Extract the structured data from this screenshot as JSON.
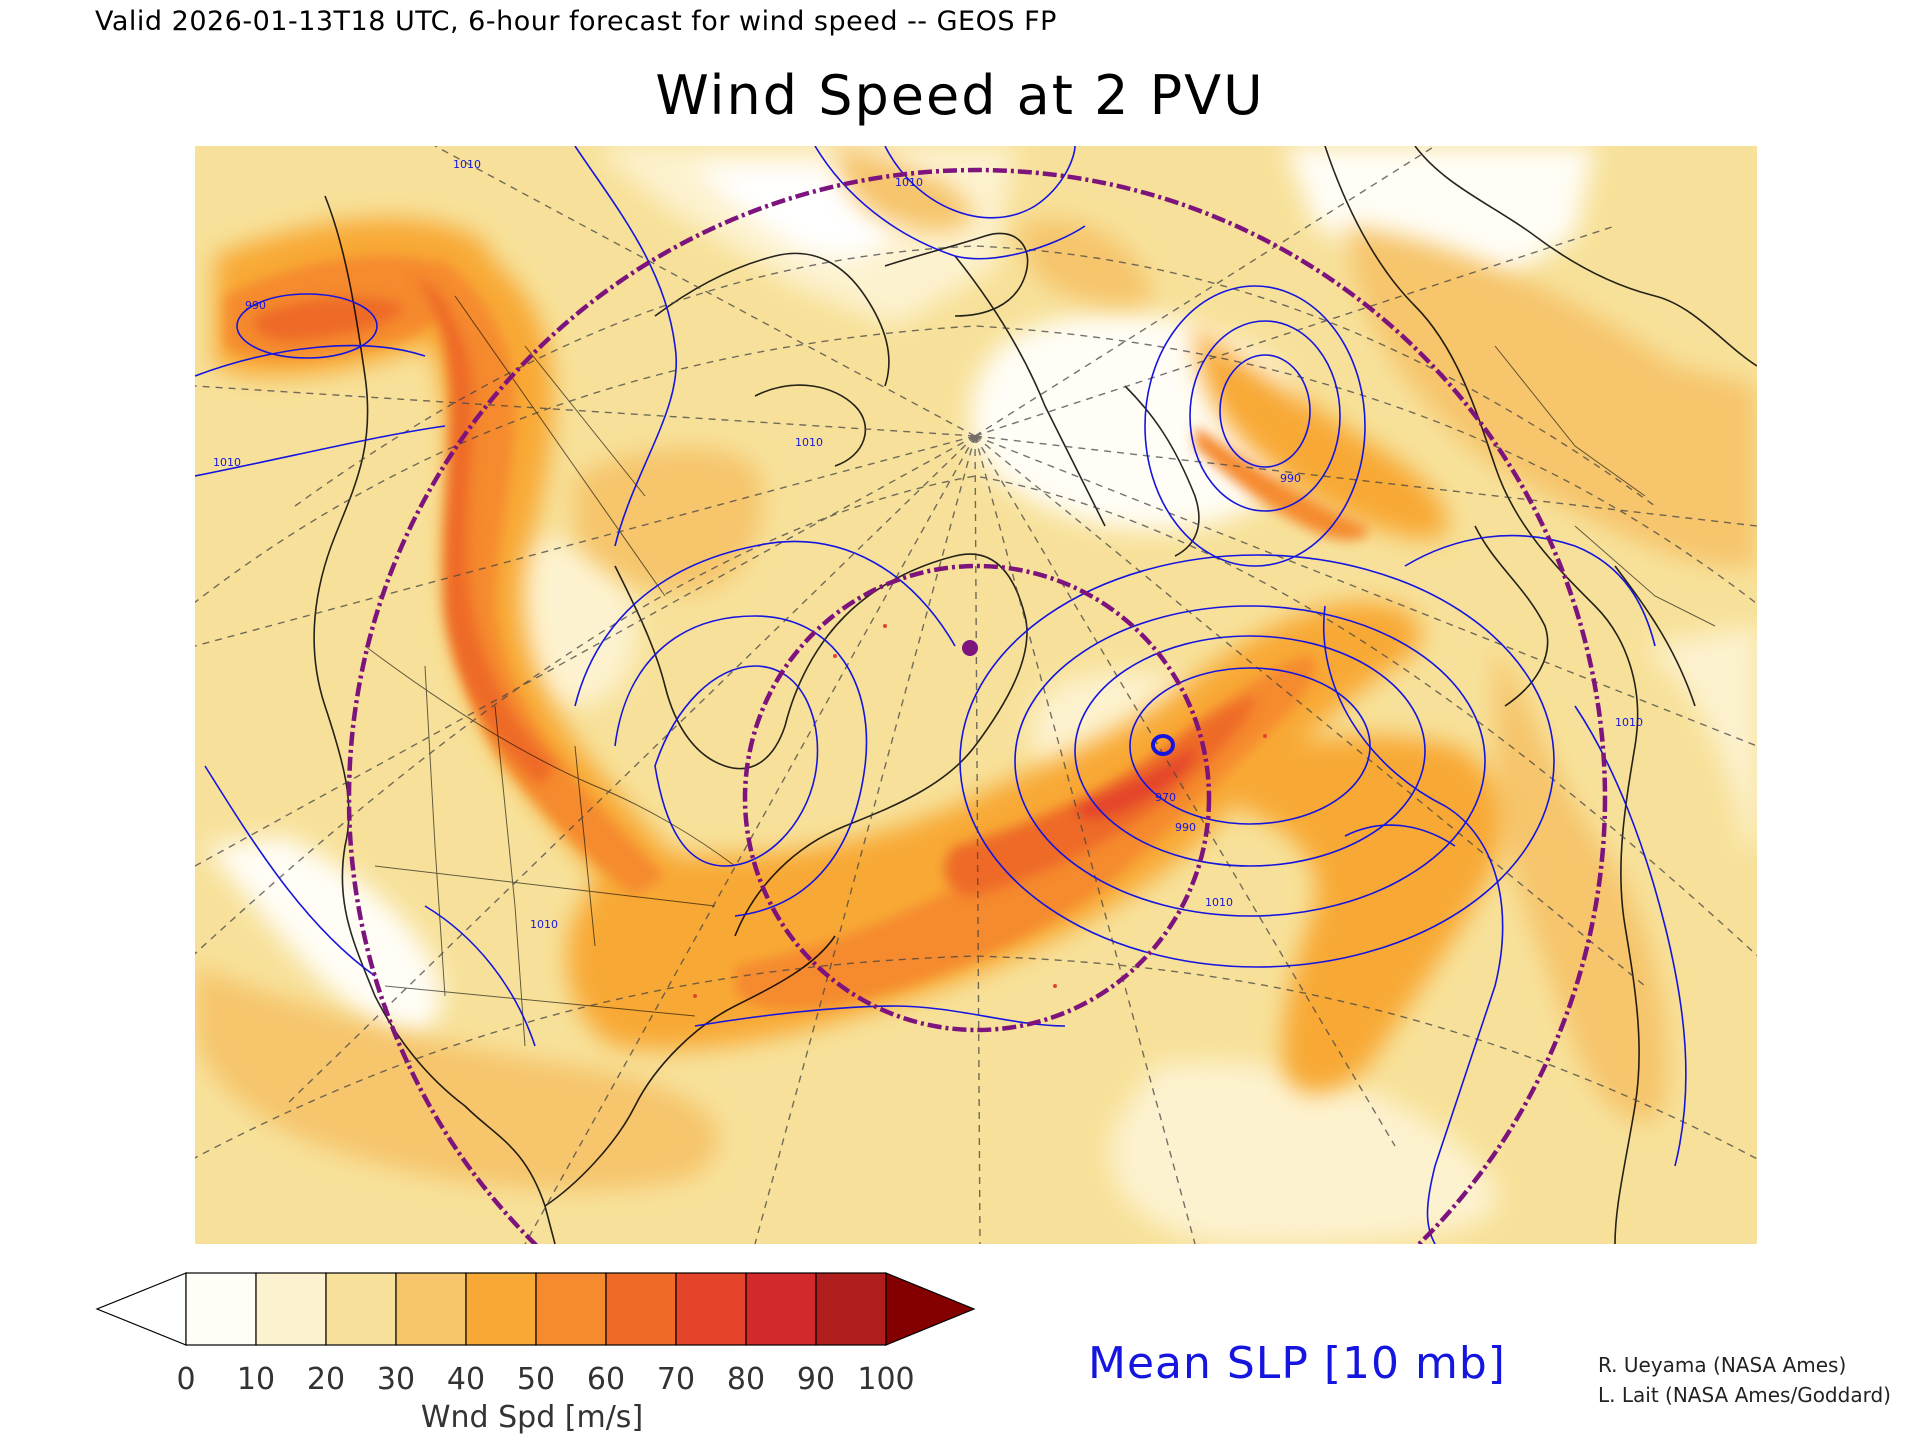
{
  "header": {
    "valid_line": "Valid 2026-01-13T18 UTC, 6-hour forecast for wind speed -- GEOS FP",
    "title": "Wind Speed at 2 PVU"
  },
  "colorbar": {
    "labels": [
      "0",
      "10",
      "20",
      "30",
      "40",
      "50",
      "60",
      "70",
      "80",
      "90",
      "100"
    ],
    "unit": "Wnd Spd [m/s]",
    "colors": [
      "#fffdf5",
      "#fdf2cf",
      "#f7e19a",
      "#f6c56c",
      "#f8a935",
      "#f58a2e",
      "#ee6a26",
      "#e4452a",
      "#d22a2a",
      "#b01e1e",
      "#840000"
    ],
    "under_color": "#ffffff",
    "over_color": "#840000"
  },
  "overlay": {
    "slp_label": "Mean SLP [10 mb]",
    "slp_color": "#1515e0",
    "ring_color": "#7d137d",
    "contour_labels": [
      "990",
      "1010",
      "1010",
      "1010",
      "1010",
      "990",
      "970",
      "990",
      "1010",
      "1010",
      "1010"
    ]
  },
  "credits": [
    "R. Ueyama (NASA Ames)",
    "L. Lait (NASA Ames/Goddard)"
  ]
}
